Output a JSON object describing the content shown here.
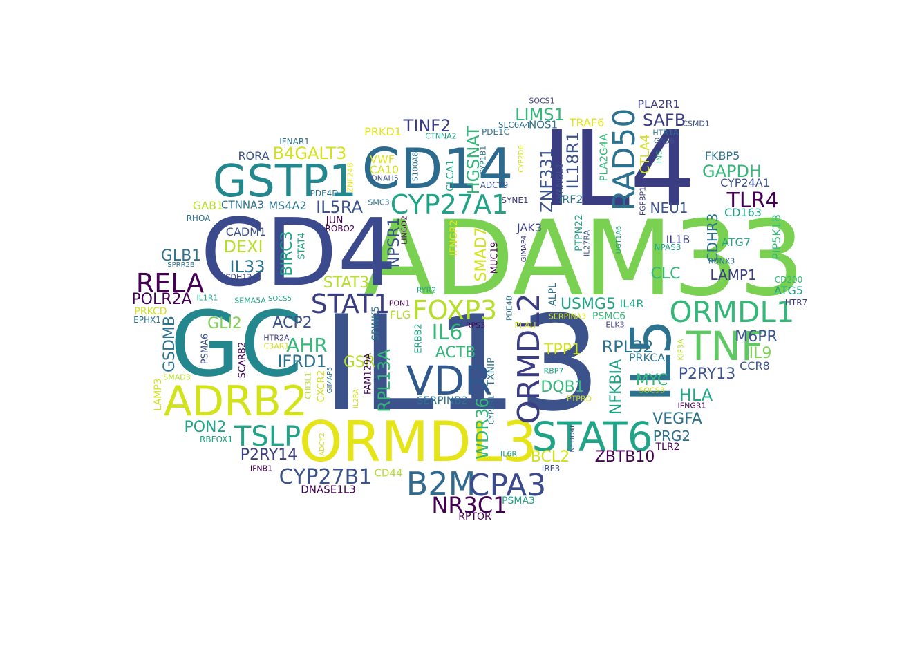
{
  "palette": {
    "c1": "#440154",
    "c2": "#3b3d82",
    "c3": "#30588c",
    "c4": "#24878e",
    "c5": "#20a386",
    "c6": "#35b779",
    "c7": "#7ad151",
    "c8": "#d2e21b",
    "c9": "#e5e419"
  },
  "words": [
    {
      "text": "IL13",
      "color": "#3b528b",
      "weight": 1.0
    },
    {
      "text": "ADAM33",
      "color": "#7ad151",
      "weight": 0.98
    },
    {
      "text": "IL4",
      "color": "#3b3d82",
      "weight": 0.95
    },
    {
      "text": "CD4",
      "color": "#3b4a8c",
      "weight": 0.88
    },
    {
      "text": "GC",
      "color": "#24878e",
      "weight": 0.86
    },
    {
      "text": "ORMDL3",
      "color": "#e5e419",
      "weight": 0.6
    },
    {
      "text": "CD14",
      "color": "#2c6a8e",
      "weight": 0.55
    },
    {
      "text": "IL5",
      "color": "#2c728e",
      "weight": 0.55
    },
    {
      "text": "GSTP1",
      "color": "#24878e",
      "weight": 0.5
    },
    {
      "text": "ADRB2",
      "color": "#d2e21b",
      "weight": 0.48
    },
    {
      "text": "STAT6",
      "color": "#20a386",
      "weight": 0.45
    },
    {
      "text": "VDR",
      "color": "#30588c",
      "weight": 0.44
    },
    {
      "text": "TNF",
      "color": "#5ec962",
      "weight": 0.43
    },
    {
      "text": "ORMDL2",
      "color": "#3b3d82",
      "weight": 0.4
    },
    {
      "text": "B2M",
      "color": "#30688e",
      "weight": 0.38
    },
    {
      "text": "CPA3",
      "color": "#3b4a8c",
      "weight": 0.36
    },
    {
      "text": "RAD50",
      "color": "#2c728e",
      "weight": 0.36
    },
    {
      "text": "ORMDL1",
      "color": "#35b779",
      "weight": 0.34
    },
    {
      "text": "CYP27A1",
      "color": "#20a386",
      "weight": 0.32
    },
    {
      "text": "TSLP",
      "color": "#20a386",
      "weight": 0.33
    },
    {
      "text": "RELA",
      "color": "#440154",
      "weight": 0.33
    },
    {
      "text": "FOXP3",
      "color": "#b5de2b",
      "weight": 0.31
    },
    {
      "text": "STAT1",
      "color": "#3b3d82",
      "weight": 0.31
    },
    {
      "text": "NR3C1",
      "color": "#440154",
      "weight": 0.3
    },
    {
      "text": "CYP27B1",
      "color": "#3b528b",
      "weight": 0.27
    },
    {
      "text": "TINF2",
      "color": "#3b3d82",
      "weight": 0.22
    },
    {
      "text": "HGSNAT",
      "color": "#35b779",
      "weight": 0.22
    },
    {
      "text": "ZNF331",
      "color": "#3b528b",
      "weight": 0.22
    },
    {
      "text": "LIMS1",
      "color": "#35b779",
      "weight": 0.22
    },
    {
      "text": "IL18R1",
      "color": "#3b528b",
      "weight": 0.22
    },
    {
      "text": "B4GALT3",
      "color": "#d2e21b",
      "weight": 0.22
    },
    {
      "text": "IL6",
      "color": "#35b779",
      "weight": 0.27
    },
    {
      "text": "AHR",
      "color": "#35b779",
      "weight": 0.26
    },
    {
      "text": "TLR4",
      "color": "#440154",
      "weight": 0.26
    },
    {
      "text": "SAFB",
      "color": "#3b3d82",
      "weight": 0.22
    },
    {
      "text": "GAPDH",
      "color": "#35b779",
      "weight": 0.22
    },
    {
      "text": "IL5RA",
      "color": "#3b528b",
      "weight": 0.21
    },
    {
      "text": "DEXI",
      "color": "#b5de2b",
      "weight": 0.22
    },
    {
      "text": "IL33",
      "color": "#2c728e",
      "weight": 0.22
    },
    {
      "text": "BIRC3",
      "color": "#20a386",
      "weight": 0.2
    },
    {
      "text": "NPSR1",
      "color": "#3b528b",
      "weight": 0.2
    },
    {
      "text": "SMAD7",
      "color": "#d2e21b",
      "weight": 0.2
    },
    {
      "text": "RPL13A",
      "color": "#35b779",
      "weight": 0.22
    },
    {
      "text": "WDR36",
      "color": "#35b779",
      "weight": 0.22
    },
    {
      "text": "GSR",
      "color": "#b5de2b",
      "weight": 0.2
    },
    {
      "text": "IFRD1",
      "color": "#2c728e",
      "weight": 0.21
    },
    {
      "text": "ACP2",
      "color": "#3b528b",
      "weight": 0.19
    },
    {
      "text": "STAT3",
      "color": "#b5de2b",
      "weight": 0.19
    },
    {
      "text": "GLI2",
      "color": "#7ad151",
      "weight": 0.19
    },
    {
      "text": "GSDMB",
      "color": "#2c728e",
      "weight": 0.2
    },
    {
      "text": "ACTB",
      "color": "#35b779",
      "weight": 0.2
    },
    {
      "text": "USMG5",
      "color": "#20a386",
      "weight": 0.19
    },
    {
      "text": "DQB1",
      "color": "#35b779",
      "weight": 0.2
    },
    {
      "text": "TPP1",
      "color": "#d2e21b",
      "weight": 0.19
    },
    {
      "text": "RPL32",
      "color": "#2c728e",
      "weight": 0.21
    },
    {
      "text": "NFKBIA",
      "color": "#20a386",
      "weight": 0.2
    },
    {
      "text": "MYC",
      "color": "#35b779",
      "weight": 0.2
    },
    {
      "text": "HLA",
      "color": "#20a386",
      "weight": 0.21
    },
    {
      "text": "P2RY13",
      "color": "#3b528b",
      "weight": 0.19
    },
    {
      "text": "M6PR",
      "color": "#3b528b",
      "weight": 0.18
    },
    {
      "text": "IL9",
      "color": "#7ad151",
      "weight": 0.18
    },
    {
      "text": "VEGFA",
      "color": "#2c728e",
      "weight": 0.19
    },
    {
      "text": "PRG2",
      "color": "#2c728e",
      "weight": 0.17
    },
    {
      "text": "ZBTB10",
      "color": "#440154",
      "weight": 0.18
    },
    {
      "text": "BCL2",
      "color": "#d2e21b",
      "weight": 0.18
    },
    {
      "text": "PON2",
      "color": "#20a386",
      "weight": 0.19
    },
    {
      "text": "P2RY14",
      "color": "#3b3d82",
      "weight": 0.19
    },
    {
      "text": "GLB1",
      "color": "#2c728e",
      "weight": 0.18
    },
    {
      "text": "POLR2A",
      "color": "#440154",
      "weight": 0.18
    },
    {
      "text": "CLC",
      "color": "#35b779",
      "weight": 0.18
    },
    {
      "text": "LAMP1",
      "color": "#3b3d82",
      "weight": 0.17
    },
    {
      "text": "CDHR3",
      "color": "#2c728e",
      "weight": 0.18
    },
    {
      "text": "NEU1",
      "color": "#3b528b",
      "weight": 0.17
    },
    {
      "text": "CTLA4",
      "color": "#d2e21b",
      "weight": 0.16
    },
    {
      "text": "CYP24A1",
      "color": "#3b528b",
      "weight": 0.15
    },
    {
      "text": "FKBP5",
      "color": "#2c728e",
      "weight": 0.14
    },
    {
      "text": "CD163",
      "color": "#20a386",
      "weight": 0.14
    },
    {
      "text": "ATG7",
      "color": "#20a386",
      "weight": 0.14
    },
    {
      "text": "PIP5K1B",
      "color": "#35b779",
      "weight": 0.14
    },
    {
      "text": "IL1B",
      "color": "#3b3d82",
      "weight": 0.14
    },
    {
      "text": "MS4A2",
      "color": "#2c728e",
      "weight": 0.14
    },
    {
      "text": "GAB1",
      "color": "#b5de2b",
      "weight": 0.13
    },
    {
      "text": "CTNNA3",
      "color": "#2c728e",
      "weight": 0.13
    },
    {
      "text": "CADM1",
      "color": "#3b528b",
      "weight": 0.14
    },
    {
      "text": "RORA",
      "color": "#3b528b",
      "weight": 0.13
    },
    {
      "text": "PRKD1",
      "color": "#e5e419",
      "weight": 0.14
    },
    {
      "text": "VWF",
      "color": "#e5e419",
      "weight": 0.13
    },
    {
      "text": "CA10",
      "color": "#d2e21b",
      "weight": 0.13
    },
    {
      "text": "TRAF6",
      "color": "#e5e419",
      "weight": 0.14
    },
    {
      "text": "NOS1",
      "color": "#2c728e",
      "weight": 0.13
    },
    {
      "text": "PLA2R1",
      "color": "#3b3d82",
      "weight": 0.13
    },
    {
      "text": "PLA2G4A",
      "color": "#35b779",
      "weight": 0.13
    },
    {
      "text": "IRF2",
      "color": "#2c728e",
      "weight": 0.14
    },
    {
      "text": "PTPN22",
      "color": "#20a386",
      "weight": 0.13
    },
    {
      "text": "JAK3",
      "color": "#3b3d82",
      "weight": 0.14
    },
    {
      "text": "IFNGR2",
      "color": "#e5e419",
      "weight": 0.12
    },
    {
      "text": "CLCA1",
      "color": "#20a386",
      "weight": 0.12
    },
    {
      "text": "ATG5",
      "color": "#20a386",
      "weight": 0.14
    },
    {
      "text": "IL4R",
      "color": "#20a386",
      "weight": 0.14
    },
    {
      "text": "PSMC6",
      "color": "#35b779",
      "weight": 0.13
    },
    {
      "text": "PRKCA",
      "color": "#2c728e",
      "weight": 0.13
    },
    {
      "text": "CCR8",
      "color": "#3b528b",
      "weight": 0.14
    },
    {
      "text": "TLR2",
      "color": "#440154",
      "weight": 0.12
    },
    {
      "text": "FLG",
      "color": "#b5de2b",
      "weight": 0.13
    },
    {
      "text": "SERPINB2",
      "color": "#2c728e",
      "weight": 0.13
    },
    {
      "text": "TXNIP",
      "color": "#2c728e",
      "weight": 0.13
    },
    {
      "text": "CD44",
      "color": "#b5de2b",
      "weight": 0.13
    },
    {
      "text": "DNASE1L3",
      "color": "#440154",
      "weight": 0.13
    },
    {
      "text": "PSMA3",
      "color": "#20a386",
      "weight": 0.12
    },
    {
      "text": "RPTOR",
      "color": "#440154",
      "weight": 0.12
    },
    {
      "text": "IRF3",
      "color": "#3b528b",
      "weight": 0.1
    },
    {
      "text": "JUN",
      "color": "#440154",
      "weight": 0.12
    },
    {
      "text": "ROBO2",
      "color": "#440154",
      "weight": 0.1
    },
    {
      "text": "PSMA6",
      "color": "#3b528b",
      "weight": 0.11
    },
    {
      "text": "SCARB2",
      "color": "#440154",
      "weight": 0.12
    },
    {
      "text": "CXCR2",
      "color": "#d2e21b",
      "weight": 0.12
    },
    {
      "text": "SPINK5",
      "color": "#2c728e",
      "weight": 0.12
    },
    {
      "text": "FAM129A",
      "color": "#440154",
      "weight": 0.11
    },
    {
      "text": "ERBB2",
      "color": "#20a386",
      "weight": 0.11
    },
    {
      "text": "LAMP3",
      "color": "#d2e21b",
      "weight": 0.12
    },
    {
      "text": "ALPL",
      "color": "#2c728e",
      "weight": 0.12
    },
    {
      "text": "STAT4",
      "color": "#20a386",
      "weight": 0.12
    },
    {
      "text": "MUC19",
      "color": "#440154",
      "weight": 0.11
    },
    {
      "text": "ZNF248",
      "color": "#e5e419",
      "weight": 0.09
    },
    {
      "text": "CD200",
      "color": "#35b779",
      "weight": 0.1
    },
    {
      "text": "HTR7",
      "color": "#3b3d82",
      "weight": 0.1
    },
    {
      "text": "SOCS1",
      "color": "#3b3d82",
      "weight": 0.09
    },
    {
      "text": "SLC6A4",
      "color": "#2c728e",
      "weight": 0.1
    },
    {
      "text": "PDE1C",
      "color": "#2c728e",
      "weight": 0.1
    },
    {
      "text": "CTNNA2",
      "color": "#20a386",
      "weight": 0.09
    },
    {
      "text": "IFNAR1",
      "color": "#2c728e",
      "weight": 0.09
    },
    {
      "text": "CSMD1",
      "color": "#3b528b",
      "weight": 0.09
    },
    {
      "text": "HTR1A",
      "color": "#2c728e",
      "weight": 0.09
    },
    {
      "text": "GAS6",
      "color": "#3b528b",
      "weight": 0.09
    },
    {
      "text": "INS",
      "color": "#35b779",
      "weight": 0.09
    },
    {
      "text": "FGFBP1",
      "color": "#3b3d82",
      "weight": 0.09
    },
    {
      "text": "CYP2D6",
      "color": "#d2e21b",
      "weight": 0.09
    },
    {
      "text": "CYP1B1",
      "color": "#2c728e",
      "weight": 0.09
    },
    {
      "text": "S100A8",
      "color": "#2c728e",
      "weight": 0.09
    },
    {
      "text": "ADCY9",
      "color": "#3b528b",
      "weight": 0.09
    },
    {
      "text": "VANGL1",
      "color": "#3b528b",
      "weight": 0.1
    },
    {
      "text": "SYNE1",
      "color": "#3b3d82",
      "weight": 0.09
    },
    {
      "text": "DNAH5",
      "color": "#3b528b",
      "weight": 0.09
    },
    {
      "text": "SMC3",
      "color": "#2c728e",
      "weight": 0.09
    },
    {
      "text": "PDE4D",
      "color": "#2c728e",
      "weight": 0.09
    },
    {
      "text": "RHOA",
      "color": "#2c728e",
      "weight": 0.1
    },
    {
      "text": "SPRR2B",
      "color": "#2c728e",
      "weight": 0.09
    },
    {
      "text": "CDH13",
      "color": "#3b3d82",
      "weight": 0.09
    },
    {
      "text": "LINGO2",
      "color": "#440154",
      "weight": 0.09
    },
    {
      "text": "GIMAP4",
      "color": "#3b3d82",
      "weight": 0.08
    },
    {
      "text": "IL27RA",
      "color": "#3b528b",
      "weight": 0.09
    },
    {
      "text": "UGT1A6",
      "color": "#20a386",
      "weight": 0.08
    },
    {
      "text": "NPAS3",
      "color": "#20a386",
      "weight": 0.09
    },
    {
      "text": "RUNX3",
      "color": "#2c728e",
      "weight": 0.09
    },
    {
      "text": "IL1R1",
      "color": "#20a386",
      "weight": 0.09
    },
    {
      "text": "SEMA5A",
      "color": "#20a386",
      "weight": 0.09
    },
    {
      "text": "SOCS5",
      "color": "#20a386",
      "weight": 0.08
    },
    {
      "text": "PRKCD",
      "color": "#d2e21b",
      "weight": 0.1
    },
    {
      "text": "EPHX1",
      "color": "#2c728e",
      "weight": 0.09
    },
    {
      "text": "RYR2",
      "color": "#20a386",
      "weight": 0.09
    },
    {
      "text": "PON1",
      "color": "#440154",
      "weight": 0.09
    },
    {
      "text": "PDE4B",
      "color": "#2c728e",
      "weight": 0.09
    },
    {
      "text": "PLAU",
      "color": "#d2e21b",
      "weight": 0.1
    },
    {
      "text": "SERPINA3",
      "color": "#d2e21b",
      "weight": 0.09
    },
    {
      "text": "ELK3",
      "color": "#3b3d82",
      "weight": 0.09
    },
    {
      "text": "RPS3",
      "color": "#440154",
      "weight": 0.09
    },
    {
      "text": "HTR2A",
      "color": "#3b3d82",
      "weight": 0.09
    },
    {
      "text": "C3AR1",
      "color": "#d2e21b",
      "weight": 0.08
    },
    {
      "text": "SMAD3",
      "color": "#b5de2b",
      "weight": 0.08
    },
    {
      "text": "CHI3L1",
      "color": "#b5de2b",
      "weight": 0.09
    },
    {
      "text": "GIMAP5",
      "color": "#2c728e",
      "weight": 0.08
    },
    {
      "text": "IL2RA",
      "color": "#d2e21b",
      "weight": 0.08
    },
    {
      "text": "CYP2R1",
      "color": "#2c728e",
      "weight": 0.09
    },
    {
      "text": "RBP7",
      "color": "#20a386",
      "weight": 0.09
    },
    {
      "text": "PTPRD",
      "color": "#d2e21b",
      "weight": 0.09
    },
    {
      "text": "KIF3A",
      "color": "#b5de2b",
      "weight": 0.08
    },
    {
      "text": "SOCS3",
      "color": "#d2e21b",
      "weight": 0.08
    },
    {
      "text": "IFNGR1",
      "color": "#440154",
      "weight": 0.09
    },
    {
      "text": "NEDD4L",
      "color": "#3b528b",
      "weight": 0.08
    },
    {
      "text": "IL6R",
      "color": "#20a386",
      "weight": 0.09
    },
    {
      "text": "ADCY2",
      "color": "#d2e21b",
      "weight": 0.08
    },
    {
      "text": "RBFOX1",
      "color": "#20a386",
      "weight": 0.09
    },
    {
      "text": "IFNB1",
      "color": "#440154",
      "weight": 0.09
    }
  ]
}
